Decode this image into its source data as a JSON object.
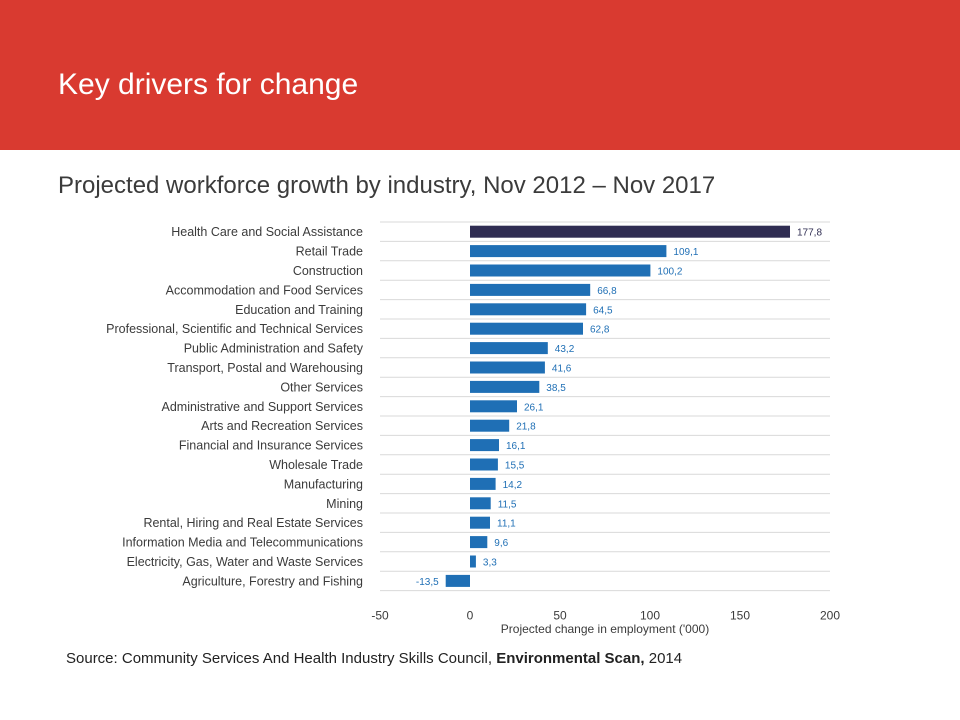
{
  "slide": {
    "title": "Key drivers for change",
    "colors": {
      "header": "#d93a30",
      "bar": "#1f6fb5",
      "highlight_bar": "#2f2d52",
      "label": "#1f6fb5",
      "highlight_label": "#2f2d52"
    }
  },
  "chart_data": {
    "type": "bar",
    "orientation": "horizontal",
    "title": "Projected workforce growth by industry, Nov 2012 – Nov 2017",
    "xlabel": "Projected change in employment ('000)",
    "ylabel": "",
    "xlim": [
      -50,
      200
    ],
    "xticks": [
      "-50",
      "0",
      "50",
      "100",
      "150",
      "200"
    ],
    "xtick_values": [
      -50,
      0,
      50,
      100,
      150,
      200
    ],
    "grid": "horizontal",
    "highlight_index": 0,
    "categories": [
      "Health Care and Social Assistance",
      "Retail Trade",
      "Construction",
      "Accommodation and Food Services",
      "Education and Training",
      "Professional, Scientific and Technical Services",
      "Public Administration and Safety",
      "Transport, Postal and Warehousing",
      "Other Services",
      "Administrative and Support Services",
      "Arts and Recreation Services",
      "Financial and Insurance Services",
      "Wholesale Trade",
      "Manufacturing",
      "Mining",
      "Rental, Hiring and Real Estate Services",
      "Information Media and Telecommunications",
      "Electricity, Gas, Water and Waste Services",
      "Agriculture, Forestry and Fishing"
    ],
    "values": [
      177.8,
      109.1,
      100.2,
      66.8,
      64.5,
      62.8,
      43.2,
      41.6,
      38.5,
      26.1,
      21.8,
      16.1,
      15.5,
      14.2,
      11.5,
      11.1,
      9.6,
      3.3,
      -13.5
    ],
    "value_labels": [
      "177,8",
      "109,1",
      "100,2",
      "66,8",
      "64,5",
      "62,8",
      "43,2",
      "41,6",
      "38,5",
      "26,1",
      "21,8",
      "16,1",
      "15,5",
      "14,2",
      "11,5",
      "11,1",
      "9,6",
      "3,3",
      "-13,5"
    ]
  },
  "source": {
    "prefix": "Source: Community Services And Health Industry Skills Council, ",
    "bold": "Environmental Scan,",
    "suffix": " 2014"
  }
}
